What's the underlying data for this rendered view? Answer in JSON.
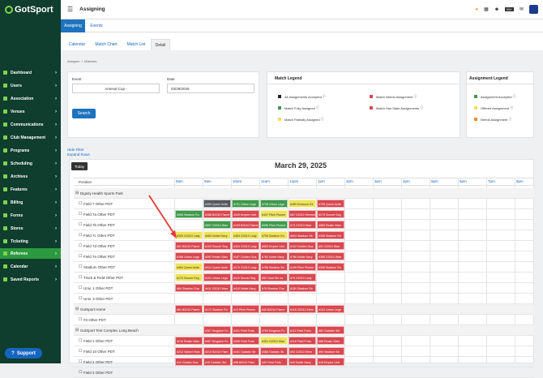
{
  "brand": {
    "name": "GotSport"
  },
  "sidebar": {
    "items": [
      {
        "label": "Dashboard"
      },
      {
        "label": "Users"
      },
      {
        "label": "Association"
      },
      {
        "label": "Venues"
      },
      {
        "label": "Communications"
      },
      {
        "label": "Club Management"
      },
      {
        "label": "Programs"
      },
      {
        "label": "Scheduling"
      },
      {
        "label": "Archives"
      },
      {
        "label": "Features"
      },
      {
        "label": "Billing"
      },
      {
        "label": "Forms"
      },
      {
        "label": "Stores"
      },
      {
        "label": "Ticketing"
      },
      {
        "label": "Referees"
      },
      {
        "label": "Calendar"
      },
      {
        "label": "Saved Reports"
      }
    ],
    "support_label": "Support"
  },
  "header": {
    "title": "Assigning",
    "badge_count": "99+"
  },
  "subtabs": [
    {
      "label": "Assigning"
    },
    {
      "label": "Events"
    }
  ],
  "viewtabs": [
    {
      "label": "Calendar"
    },
    {
      "label": "Match Chart"
    },
    {
      "label": "Match List"
    },
    {
      "label": "Detail"
    }
  ],
  "breadcrumb": {
    "a": "Assignor",
    "b": "Matches"
  },
  "filters": {
    "event_label": "Event",
    "event_value": "Arsenal Cup -",
    "date_label": "Date",
    "date_value": "03/29/2025",
    "search_label": "Search",
    "hide_filter": "Hide Filter",
    "expand_rows": "Expand Rows"
  },
  "match_legend": {
    "title": "Match Legend",
    "items": [
      {
        "label": "All Assignments Accepted",
        "color": "#222222"
      },
      {
        "label": "Match Fully Assigned",
        "color": "#3f9a4a"
      },
      {
        "label": "Match Partially Assigned",
        "color": "#efe35a"
      },
      {
        "label": "Match Needs Assignment",
        "color": "#d9474f"
      },
      {
        "label": "Match Has Stale Assignments",
        "color": "#d9474f"
      }
    ]
  },
  "assignment_legend": {
    "title": "Assignment Legend",
    "items": [
      {
        "label": "Assignment Accepted",
        "color": "#3f9a4a"
      },
      {
        "label": "Offered Assignment",
        "color": "#efe35a"
      },
      {
        "label": "Needs Assignment",
        "color": "#f08c2e"
      }
    ]
  },
  "schedule": {
    "today_label": "Today",
    "date_title": "March 29, 2025",
    "position_header": "Position",
    "hours": [
      "8am",
      "9am",
      "10am",
      "11am",
      "12pm",
      "1pm",
      "2pm",
      "3pm",
      "4pm",
      "5pm",
      "6pm",
      "7pm",
      "8pm"
    ],
    "rows": [
      {
        "label": "Dignity Health Sports Park",
        "group": true
      },
      {
        "label": "Field 7 Other PDT",
        "group": false
      },
      {
        "label": "Field 7a Other PDT",
        "group": false
      },
      {
        "label": "Field 7b Other PDT",
        "group": false
      },
      {
        "label": "Field 7c Other PDT",
        "group": false
      },
      {
        "label": "Field 7d Other PDT",
        "group": false
      },
      {
        "label": "Field 7e Other PDT",
        "group": false
      },
      {
        "label": "Stadium Other PDT",
        "group": false
      },
      {
        "label": "Track & Field Other PDT",
        "group": false
      },
      {
        "label": "Univ. 1 Other PDT",
        "group": false
      },
      {
        "label": "Univ. 3 Other PDT",
        "group": false
      },
      {
        "label": "GotSport Home",
        "group": true
      },
      {
        "label": "#3 Other PDT",
        "group": false
      },
      {
        "label": "GotSport Test Complex Long Beach",
        "group": true
      },
      {
        "label": "Field 1 Other PDT",
        "group": false
      },
      {
        "label": "Field 10 Other PDT",
        "group": false
      },
      {
        "label": "Field 2 Other PDT",
        "group": false
      },
      {
        "label": "Field 3 Other PDT",
        "group": false
      }
    ],
    "events": [
      {
        "row": 1,
        "start": 1,
        "dur": 1,
        "c": "gray",
        "t": "#390 Quest Unite"
      },
      {
        "row": 1,
        "start": 2,
        "dur": 1,
        "c": "green",
        "t": "#721 Urban Lega"
      },
      {
        "row": 1,
        "start": 3,
        "dur": 1,
        "c": "green",
        "t": "#738 Urban Lega"
      },
      {
        "row": 1,
        "start": 4,
        "dur": 1,
        "c": "yellow",
        "t": "#450 Endzone Eli"
      },
      {
        "row": 1,
        "start": 5,
        "dur": 1,
        "c": "red",
        "t": "#795 Quest Unite"
      },
      {
        "row": 2,
        "start": 0,
        "dur": 1,
        "c": "green",
        "t": "#598 Stadium Ru"
      },
      {
        "row": 2,
        "start": 1,
        "dur": 1,
        "c": "red",
        "t": "#386 B2010 Flame"
      },
      {
        "row": 2,
        "start": 2,
        "dur": 1,
        "c": "red",
        "t": "#349 Empire Unit"
      },
      {
        "row": 2,
        "start": 3,
        "dur": 1,
        "c": "yellow",
        "t": "#497 Pitch Pionee"
      },
      {
        "row": 2,
        "start": 4,
        "dur": 1,
        "c": "red",
        "t": "#67 G2010 Elemen"
      },
      {
        "row": 2,
        "start": 5,
        "dur": 1,
        "c": "red",
        "t": "#179 Soccer Seg"
      },
      {
        "row": 3,
        "start": 1,
        "dur": 1,
        "c": "green",
        "t": "#597 G2010 Warr"
      },
      {
        "row": 3,
        "start": 2,
        "dur": 1,
        "c": "red",
        "t": "#193 B2010 Flame"
      },
      {
        "row": 3,
        "start": 3,
        "dur": 1,
        "c": "green",
        "t": "#596 Pitch Pionee"
      },
      {
        "row": 3,
        "start": 4,
        "dur": 1,
        "c": "red",
        "t": "#73 G2010 Warr"
      },
      {
        "row": 3,
        "start": 5,
        "dur": 1,
        "c": "red",
        "t": "#555 Realm Warr"
      },
      {
        "row": 4,
        "start": 0,
        "dur": 1,
        "c": "yellow",
        "t": "#393 G2010 Lady"
      },
      {
        "row": 4,
        "start": 1,
        "dur": 1,
        "c": "yellow",
        "t": "#463 Noble Navy"
      },
      {
        "row": 4,
        "start": 2,
        "dur": 1,
        "c": "yellow",
        "t": "#453 G2010 Lady"
      },
      {
        "row": 4,
        "start": 3,
        "dur": 1,
        "c": "yellow",
        "t": "#756 Stadium Ru"
      },
      {
        "row": 4,
        "start": 4,
        "dur": 1,
        "c": "red",
        "t": "#604 Stadium Str"
      },
      {
        "row": 4,
        "start": 5,
        "dur": 1,
        "c": "red",
        "t": "#398 Stadium Str"
      },
      {
        "row": 5,
        "start": 0,
        "dur": 1,
        "c": "red",
        "t": "#61 B2010 Flame"
      },
      {
        "row": 5,
        "start": 1,
        "dur": 1,
        "c": "red",
        "t": "#103 Soccer Seg"
      },
      {
        "row": 5,
        "start": 2,
        "dur": 1,
        "c": "red",
        "t": "#403 G2010 Lady"
      },
      {
        "row": 5,
        "start": 3,
        "dur": 1,
        "c": "red",
        "t": "#653 Empire Unit"
      },
      {
        "row": 5,
        "start": 4,
        "dur": 1,
        "c": "red",
        "t": "#102 Golden Gua"
      },
      {
        "row": 5,
        "start": 5,
        "dur": 1,
        "c": "red",
        "t": "#91 G2010 Warr"
      },
      {
        "row": 6,
        "start": 0,
        "dur": 1,
        "c": "red",
        "t": "#168 Urban Lega"
      },
      {
        "row": 6,
        "start": 1,
        "dur": 1,
        "c": "red",
        "t": "#392 Realm Warr"
      },
      {
        "row": 6,
        "start": 2,
        "dur": 1,
        "c": "red",
        "t": "#187 Golden Gua"
      },
      {
        "row": 6,
        "start": 3,
        "dur": 1,
        "c": "red",
        "t": "#760 Noble Navy"
      },
      {
        "row": 6,
        "start": 4,
        "dur": 1,
        "c": "red",
        "t": "#766 Noble Navy"
      },
      {
        "row": 6,
        "start": 5,
        "dur": 1,
        "c": "red",
        "t": "#385 G2010 Warr"
      },
      {
        "row": 7,
        "start": 0,
        "dur": 1,
        "c": "yellow",
        "t": "#464 Quest Unite"
      },
      {
        "row": 7,
        "start": 1,
        "dur": 1,
        "c": "red",
        "t": "#314 Quest Unite"
      },
      {
        "row": 7,
        "start": 2,
        "dur": 1,
        "c": "red",
        "t": "#170 G2010 Lady"
      },
      {
        "row": 7,
        "start": 3,
        "dur": 1,
        "c": "red",
        "t": "#766 Stadium Str"
      },
      {
        "row": 7,
        "start": 4,
        "dur": 1,
        "c": "red",
        "t": "#199 Pitch Pionee"
      },
      {
        "row": 7,
        "start": 5,
        "dur": 1,
        "c": "red",
        "t": "#356 Stadium Str"
      },
      {
        "row": 8,
        "start": 0,
        "dur": 1,
        "c": "yellow",
        "t": "#170 Soccer Seg"
      },
      {
        "row": 8,
        "start": 1,
        "dur": 1,
        "c": "red",
        "t": "#101 Urban Lega"
      },
      {
        "row": 8,
        "start": 2,
        "dur": 1,
        "c": "red",
        "t": "#110 Soccer Seg"
      },
      {
        "row": 8,
        "start": 3,
        "dur": 1,
        "c": "red",
        "t": "#92 Goal Girl ca"
      },
      {
        "row": 8,
        "start": 4,
        "dur": 1,
        "c": "red",
        "t": "#79 G2010 Lady"
      },
      {
        "row": 9,
        "start": 0,
        "dur": 1,
        "c": "red",
        "t": "#84 Shadow Cha"
      },
      {
        "row": 9,
        "start": 1,
        "dur": 1,
        "c": "red",
        "t": "#411 G2010 Warr"
      },
      {
        "row": 9,
        "start": 2,
        "dur": 1,
        "c": "red",
        "t": "#410 Noble Navy"
      },
      {
        "row": 9,
        "start": 3,
        "dur": 1,
        "c": "red",
        "t": "#76 Shadow Cha"
      },
      {
        "row": 9,
        "start": 4,
        "dur": 1,
        "c": "red",
        "t": "#330 Stadium Str"
      },
      {
        "row": 11,
        "start": 0,
        "dur": 1,
        "c": "red",
        "t": "#61 B2010 Flame"
      },
      {
        "row": 11,
        "start": 1,
        "dur": 1,
        "c": "red",
        "t": "#172 Stadium Ru"
      },
      {
        "row": 11,
        "start": 2,
        "dur": 1,
        "c": "red",
        "t": "#13 Pitch Pionee"
      },
      {
        "row": 11,
        "start": 3,
        "dur": 1,
        "c": "red",
        "t": "#40 B2010 Flame"
      },
      {
        "row": 11,
        "start": 4,
        "dur": 1,
        "c": "red",
        "t": "#118 G2010 Elem"
      },
      {
        "row": 11,
        "start": 5,
        "dur": 1,
        "c": "red",
        "t": "#103 Urban Lega"
      },
      {
        "row": 13,
        "start": 1,
        "dur": 1,
        "c": "red",
        "t": "#307 Kingdom Fo"
      },
      {
        "row": 13,
        "start": 2,
        "dur": 1,
        "c": "red",
        "t": "#401 Field Fortu"
      },
      {
        "row": 13,
        "start": 3,
        "dur": 1,
        "c": "red",
        "t": "#763 Kingdom Fo"
      },
      {
        "row": 13,
        "start": 4,
        "dur": 1,
        "c": "red",
        "t": "#111 Field Fortu"
      },
      {
        "row": 13,
        "start": 5,
        "dur": 1,
        "c": "red",
        "t": "#82 Galactic Stri"
      },
      {
        "row": 14,
        "start": 0,
        "dur": 1,
        "c": "red",
        "t": "#216 Realm Warr"
      },
      {
        "row": 14,
        "start": 1,
        "dur": 1,
        "c": "red",
        "t": "#397 Kingdom Fo"
      },
      {
        "row": 14,
        "start": 2,
        "dur": 1,
        "c": "red",
        "t": "#305 Field Fortu"
      },
      {
        "row": 14,
        "start": 3,
        "dur": 1,
        "c": "yellow",
        "t": "#301 G2010 Warr"
      },
      {
        "row": 14,
        "start": 4,
        "dur": 1,
        "c": "red",
        "t": "#118 Field Fortu"
      },
      {
        "row": 14,
        "start": 5,
        "dur": 1,
        "c": "red",
        "t": "#88 Realm Warr"
      },
      {
        "row": 15,
        "start": 0,
        "dur": 1,
        "c": "red",
        "t": "#213 Valiant Victo"
      },
      {
        "row": 15,
        "start": 1,
        "dur": 1,
        "c": "red",
        "t": "#210 B2010 Flam"
      },
      {
        "row": 15,
        "start": 2,
        "dur": 1,
        "c": "red",
        "t": "#191 Galactic Str"
      },
      {
        "row": 15,
        "start": 3,
        "dur": 1,
        "c": "red",
        "t": "#388 Galactic Str"
      },
      {
        "row": 15,
        "start": 4,
        "dur": 1,
        "c": "red",
        "t": "#92 G2010 Elem"
      },
      {
        "row": 15,
        "start": 5,
        "dur": 1,
        "c": "red",
        "t": "#90 Stadium Str"
      },
      {
        "row": 16,
        "start": 0,
        "dur": 1,
        "c": "red",
        "t": "#12 Golden Gua"
      },
      {
        "row": 16,
        "start": 1,
        "dur": 1,
        "c": "red",
        "t": "#15 Galactic Stri"
      },
      {
        "row": 16,
        "start": 2,
        "dur": 1,
        "c": "red",
        "t": "#98 B2010 Flam"
      },
      {
        "row": 16,
        "start": 3,
        "dur": 1,
        "c": "red",
        "t": "#30 Field Fortu"
      },
      {
        "row": 16,
        "start": 4,
        "dur": 1,
        "c": "red",
        "t": "#40 Noble Navy"
      },
      {
        "row": 16,
        "start": 5,
        "dur": 1,
        "c": "red",
        "t": "#18 Empire Unit"
      }
    ]
  }
}
